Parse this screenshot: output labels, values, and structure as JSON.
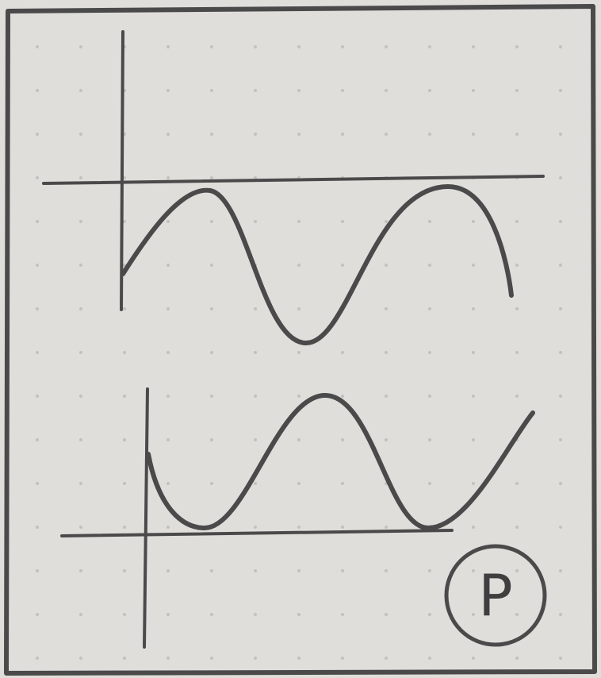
{
  "label": "P"
}
